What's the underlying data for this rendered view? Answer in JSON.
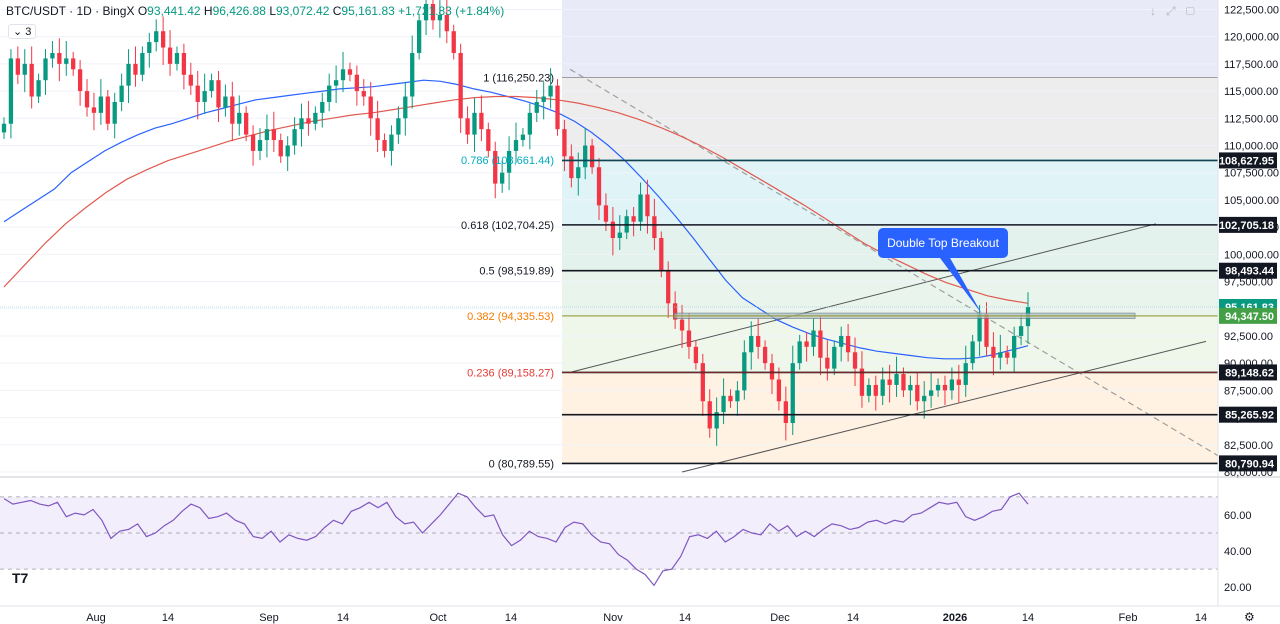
{
  "header": {
    "symbol": "BTC/USDT · 1D · BingX",
    "open_label": "O",
    "open": "93,441.42",
    "high_label": "H",
    "high": "96,426.88",
    "low_label": "L",
    "low": "93,072.42",
    "close_label": "C",
    "close": "95,161.83",
    "change": "+1,721.83 (+1.84%)",
    "indicator_count": "3"
  },
  "colors": {
    "up": "#089981",
    "down": "#f23645",
    "ema_fast": "#e05a4f",
    "ema_slow": "#2962ff",
    "rsi": "#7e57c2",
    "fib_786": "#00acc1",
    "fib_382": "#f57c00",
    "fib_236": "#e53935"
  },
  "chart_data": [
    {
      "type": "candlestick",
      "ylim": [
        80000,
        123000
      ],
      "x_ticks": [
        "Aug",
        "14",
        "Sep",
        "14",
        "Oct",
        "14",
        "Nov",
        "14",
        "Dec",
        "14",
        "2026",
        "14",
        "Feb",
        "14"
      ],
      "y_ticks": [
        "122,500.00",
        "120,000.00",
        "117,500.00",
        "115,000.00",
        "112,500.00",
        "110,000.00",
        "107,500.00",
        "105,000.00",
        "102,500.00",
        "100,000.00",
        "97,500.00",
        "95,000.00",
        "92,500.00",
        "90,000.00",
        "87,500.00",
        "85,000.00",
        "82,500.00",
        "80,000.00"
      ],
      "close_series_approx": [
        112000,
        118000,
        116500,
        117500,
        114500,
        116000,
        118000,
        118500,
        117500,
        118000,
        117000,
        115000,
        113500,
        113000,
        114500,
        112000,
        114000,
        115500,
        117500,
        116500,
        118500,
        119500,
        120500,
        119000,
        117500,
        118500,
        116500,
        115500,
        114000,
        115000,
        116000,
        113500,
        114500,
        112000,
        113000,
        111000,
        109500,
        110500,
        111500,
        110500,
        109000,
        110000,
        111500,
        112500,
        112000,
        113000,
        114000,
        115500,
        116000,
        117000,
        116500,
        115000,
        114500,
        112500,
        110500,
        109500,
        111000,
        112500,
        114500,
        118500,
        121500,
        123000,
        121500,
        122000,
        120500,
        118500,
        112500,
        111000,
        113000,
        111500,
        109500,
        106500,
        107500,
        109500,
        110500,
        111000,
        113000,
        114000,
        114500,
        115500,
        111500,
        109000,
        107000,
        108000,
        110000,
        108000,
        104500,
        103000,
        101500,
        102000,
        103500,
        103000,
        105500,
        103500,
        101500,
        98500,
        95500,
        94000,
        93000,
        91500,
        90000,
        86500,
        84000,
        85500,
        87000,
        86500,
        87500,
        91000,
        92500,
        91500,
        90000,
        88500,
        86500,
        84500,
        90000,
        92000,
        91500,
        93000,
        90500,
        89500,
        91500,
        92500,
        91000,
        89500,
        87000,
        88000,
        87000,
        88500,
        88000,
        89000,
        87500,
        88000,
        86500,
        87000,
        87500,
        88000,
        87500,
        88500,
        88000,
        90000,
        92000,
        94500,
        91500,
        90500,
        91000,
        90500,
        92500,
        93400,
        95160
      ],
      "series": [
        {
          "name": "",
          "type": "ema",
          "values_approx": [
            103000,
            104000,
            105000,
            106000,
            107500,
            108500,
            109500,
            110300,
            111000,
            111600,
            112000,
            112500,
            113000,
            113400,
            113800,
            114200,
            114400,
            114600,
            114800,
            115000,
            115200,
            115300,
            115400,
            115600,
            115800,
            116000,
            115900,
            115600,
            115200,
            114900,
            114500,
            114100,
            113600,
            113000,
            112200,
            111200,
            110000,
            108600,
            107000,
            105300,
            103500,
            101600,
            99600,
            97600,
            96000,
            95000,
            94000,
            93300,
            92700,
            92200,
            91800,
            91400,
            91100,
            90900,
            90700,
            90500,
            90400,
            90400,
            90500,
            90800,
            91200,
            91600
          ]
        },
        {
          "name": "",
          "type": "ema",
          "values_approx": [
            97000,
            99000,
            101000,
            102800,
            104300,
            105700,
            106900,
            107800,
            108600,
            109200,
            109800,
            110400,
            110900,
            111400,
            111800,
            112200,
            112500,
            112800,
            113000,
            113300,
            113600,
            113900,
            114200,
            114400,
            114500,
            114500,
            114400,
            114200,
            113900,
            113500,
            113000,
            112400,
            111700,
            110900,
            110000,
            109000,
            107900,
            106800,
            105700,
            104600,
            103400,
            102200,
            101000,
            100000,
            99100,
            98200,
            97400,
            96800,
            96200,
            95800,
            95500
          ]
        }
      ],
      "horizontal_levels": [
        "108,627.95",
        "102,705.18",
        "98,493.44",
        "95,161.83",
        "94,347.50",
        "89,148.62",
        "85,265.92",
        "80,790.94"
      ],
      "fibonacci": [
        {
          "ratio": "1",
          "label": "1 (116,250.23)",
          "value": 116250.23
        },
        {
          "ratio": "0.786",
          "label": "0.786 (108,661.44)",
          "value": 108661.44
        },
        {
          "ratio": "0.618",
          "label": "0.618 (102,704.25)",
          "value": 102704.25
        },
        {
          "ratio": "0.5",
          "label": "0.5 (98,519.89)",
          "value": 98519.89
        },
        {
          "ratio": "0.382",
          "label": "0.382 (94,335.53)",
          "value": 94335.53
        },
        {
          "ratio": "0.236",
          "label": "0.236 (89,158.27)",
          "value": 89158.27
        },
        {
          "ratio": "0",
          "label": "0 (80,789.55)",
          "value": 80789.55
        }
      ],
      "annotations": [
        "Double Top Breakout"
      ]
    },
    {
      "type": "line",
      "ylim": [
        14,
        76
      ],
      "y_ticks": [
        "60.00",
        "40.00",
        "20.00"
      ],
      "series": [
        {
          "name": "",
          "values_approx": [
            69,
            66,
            67,
            68,
            66,
            65,
            67,
            59,
            61,
            60,
            63,
            57,
            47,
            51,
            52,
            55,
            48,
            50,
            54,
            57,
            62,
            66,
            64,
            58,
            59,
            61,
            57,
            55,
            48,
            47,
            51,
            45,
            49,
            47,
            46,
            48,
            53,
            57,
            55,
            62,
            64,
            67,
            64,
            67,
            59,
            55,
            56,
            50,
            55,
            60,
            66,
            72,
            70,
            64,
            59,
            60,
            49,
            43,
            46,
            51,
            48,
            47,
            45,
            53,
            56,
            55,
            49,
            45,
            44,
            38,
            35,
            30,
            27,
            21,
            29,
            30,
            37,
            48,
            49,
            47,
            51,
            45,
            48,
            52,
            50,
            49,
            55,
            51,
            54,
            48,
            51,
            48,
            52,
            55,
            54,
            52,
            53,
            56,
            57,
            55,
            57,
            56,
            60,
            61,
            64,
            67,
            66,
            67,
            59,
            57,
            59,
            62,
            63,
            70,
            72,
            66
          ]
        }
      ]
    }
  ]
}
